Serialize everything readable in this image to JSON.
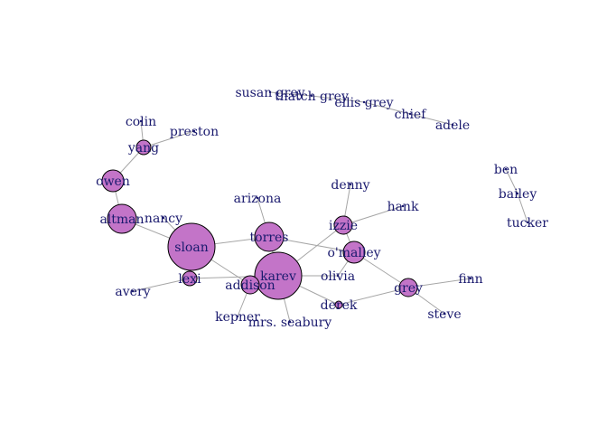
{
  "colors": {
    "node_fill": "#c374c8",
    "node_stroke": "#000000",
    "edge": "#a6a6a6",
    "label": "#1a1a6e"
  },
  "graph": {
    "nodes": [
      {
        "id": "sloan",
        "label": "sloan",
        "size": 13
      },
      {
        "id": "karev",
        "label": "karev",
        "size": 13
      },
      {
        "id": "altman",
        "label": "altman",
        "size": 8
      },
      {
        "id": "torres",
        "label": "torres",
        "size": 8
      },
      {
        "id": "owen",
        "label": "owen",
        "size": 6
      },
      {
        "id": "omalley",
        "label": "o'malley",
        "size": 6
      },
      {
        "id": "izzie",
        "label": "izzie",
        "size": 5
      },
      {
        "id": "grey",
        "label": "grey",
        "size": 5
      },
      {
        "id": "addison",
        "label": "addison",
        "size": 5
      },
      {
        "id": "yang",
        "label": "yang",
        "size": 4
      },
      {
        "id": "lexi",
        "label": "lexi",
        "size": 4
      },
      {
        "id": "derek",
        "label": "derek",
        "size": 2
      },
      {
        "id": "colin",
        "label": "colin",
        "size": 0
      },
      {
        "id": "preston",
        "label": "preston",
        "size": 0
      },
      {
        "id": "nancy",
        "label": "nancy",
        "size": 0
      },
      {
        "id": "avery",
        "label": "avery",
        "size": 0
      },
      {
        "id": "arizona",
        "label": "arizona",
        "size": 0
      },
      {
        "id": "denny",
        "label": "denny",
        "size": 0
      },
      {
        "id": "hank",
        "label": "hank",
        "size": 0
      },
      {
        "id": "olivia",
        "label": "olivia",
        "size": 0
      },
      {
        "id": "kepner",
        "label": "kepner",
        "size": 0
      },
      {
        "id": "mrs_seabury",
        "label": "mrs. seabury",
        "size": 0
      },
      {
        "id": "finn",
        "label": "finn",
        "size": 0
      },
      {
        "id": "steve",
        "label": "steve",
        "size": 0
      },
      {
        "id": "susan_grey",
        "label": "susan grey",
        "size": 0
      },
      {
        "id": "thatch_grey",
        "label": "thatch grey",
        "size": 0
      },
      {
        "id": "ellis_grey",
        "label": "ellis grey",
        "size": 0
      },
      {
        "id": "chief",
        "label": "chief",
        "size": 0
      },
      {
        "id": "adele",
        "label": "adele",
        "size": 0
      },
      {
        "id": "ben",
        "label": "ben",
        "size": 0
      },
      {
        "id": "bailey",
        "label": "bailey",
        "size": 0
      },
      {
        "id": "tucker",
        "label": "tucker",
        "size": 0
      }
    ],
    "edges": [
      [
        "colin",
        "yang"
      ],
      [
        "preston",
        "yang"
      ],
      [
        "yang",
        "owen"
      ],
      [
        "owen",
        "altman"
      ],
      [
        "altman",
        "sloan"
      ],
      [
        "nancy",
        "sloan"
      ],
      [
        "sloan",
        "torres"
      ],
      [
        "sloan",
        "lexi"
      ],
      [
        "sloan",
        "addison"
      ],
      [
        "lexi",
        "avery"
      ],
      [
        "lexi",
        "karev"
      ],
      [
        "torres",
        "arizona"
      ],
      [
        "torres",
        "omalley"
      ],
      [
        "torres",
        "karev"
      ],
      [
        "addison",
        "karev"
      ],
      [
        "addison",
        "kepner"
      ],
      [
        "karev",
        "izzie"
      ],
      [
        "karev",
        "olivia"
      ],
      [
        "karev",
        "mrs_seabury"
      ],
      [
        "karev",
        "derek"
      ],
      [
        "izzie",
        "denny"
      ],
      [
        "izzie",
        "hank"
      ],
      [
        "izzie",
        "omalley"
      ],
      [
        "omalley",
        "olivia"
      ],
      [
        "omalley",
        "grey"
      ],
      [
        "derek",
        "grey"
      ],
      [
        "grey",
        "finn"
      ],
      [
        "grey",
        "steve"
      ],
      [
        "susan_grey",
        "thatch_grey"
      ],
      [
        "thatch_grey",
        "ellis_grey"
      ],
      [
        "ellis_grey",
        "chief"
      ],
      [
        "chief",
        "adele"
      ],
      [
        "ben",
        "bailey"
      ],
      [
        "bailey",
        "tucker"
      ]
    ]
  }
}
